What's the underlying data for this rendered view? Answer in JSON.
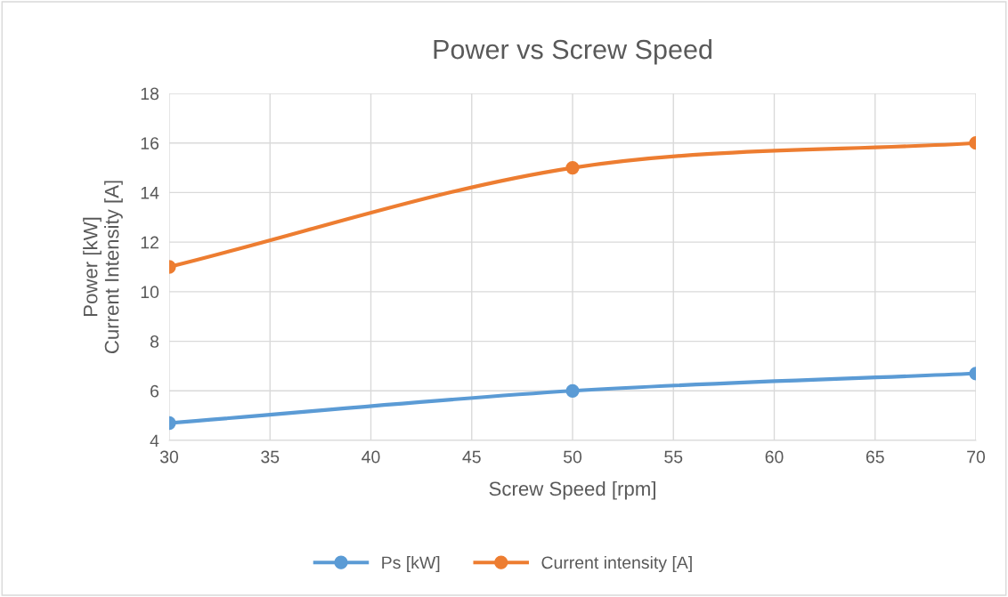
{
  "chart_data": {
    "type": "line",
    "title": "Power vs Screw Speed",
    "xlabel": "Screw Speed [rpm]",
    "ylabel": "Power [kW]\nCurrent Intensity [A]",
    "x": [
      30,
      50,
      70
    ],
    "series": [
      {
        "name": "Ps [kW]",
        "color": "#5b9bd5",
        "values": [
          4.7,
          6.0,
          6.7
        ]
      },
      {
        "name": "Current intensity [A]",
        "color": "#ed7d31",
        "values": [
          11,
          15,
          16
        ]
      }
    ],
    "xlim": [
      30,
      70
    ],
    "xticks": [
      30,
      35,
      40,
      45,
      50,
      55,
      60,
      65,
      70
    ],
    "ylim": [
      4,
      18
    ],
    "yticks": [
      4,
      6,
      8,
      10,
      12,
      14,
      16,
      18
    ],
    "grid": true,
    "legend": "bottom",
    "marker": "circle",
    "line_style": "solid"
  }
}
